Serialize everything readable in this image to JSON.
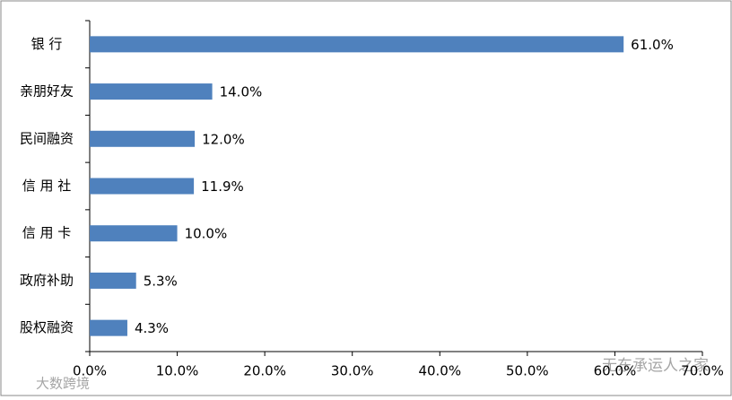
{
  "chart_data": {
    "type": "hbar",
    "categories": [
      "银 行",
      "亲朋好友",
      "民间融资",
      "信 用 社",
      "信 用 卡",
      "政府补助",
      "股权融资"
    ],
    "values": [
      61.0,
      14.0,
      12.0,
      11.9,
      10.0,
      5.3,
      4.3
    ],
    "value_labels": [
      "61.0%",
      "14.0%",
      "12.0%",
      "11.9%",
      "10.0%",
      "5.3%",
      "4.3%"
    ],
    "color": "#4f81bd",
    "xlim": [
      0,
      70
    ],
    "xticks": [
      {
        "value": 0,
        "label": "0.0%"
      },
      {
        "value": 10,
        "label": "10.0%"
      },
      {
        "value": 20,
        "label": "20.0%"
      },
      {
        "value": 30,
        "label": "30.0%"
      },
      {
        "value": 40,
        "label": "40.0%"
      },
      {
        "value": 50,
        "label": "50.0%"
      },
      {
        "value": 60,
        "label": "60.0%"
      },
      {
        "value": 70,
        "label": "70.0%"
      }
    ],
    "grid": false
  },
  "watermarks": [
    "无东承运人之家",
    "大数跨境"
  ]
}
